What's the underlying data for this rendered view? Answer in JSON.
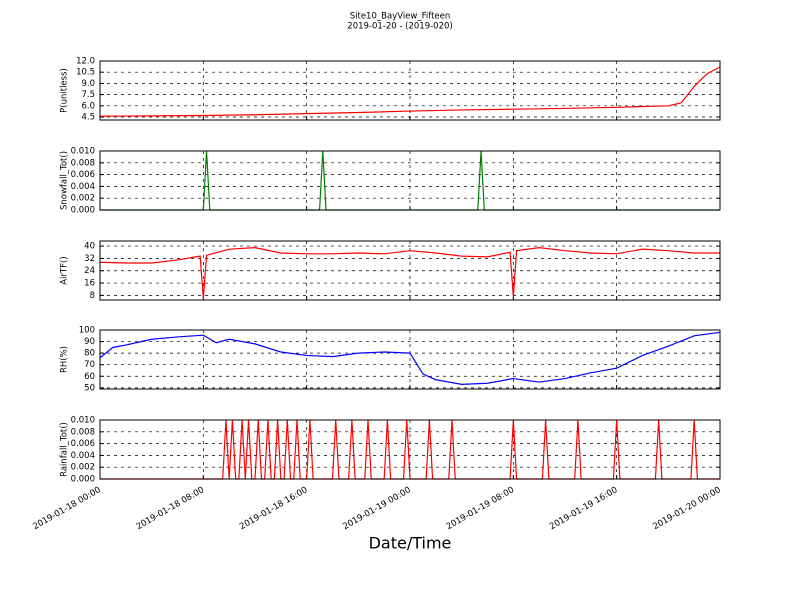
{
  "chart_data": [
    {
      "type": "line",
      "title": "Site10_BayView_Fifteen",
      "subtitle": "2019-01-20 - (2019-020)",
      "ylabel": "P(unitless)",
      "ylim": [
        4.1,
        12.0
      ],
      "yticks": [
        4.5,
        {
          "value": 6,
          "label": "6.0"
        },
        7.5,
        {
          "value": 9,
          "label": "9.0"
        },
        10.5,
        {
          "value": 12,
          "label": "12.0"
        }
      ],
      "grid": true,
      "x": [
        "2019-01-18 00:00",
        "2019-01-18 04:00",
        "2019-01-18 08:00",
        "2019-01-18 12:00",
        "2019-01-18 16:00",
        "2019-01-18 20:00",
        "2019-01-19 00:00",
        "2019-01-19 04:00",
        "2019-01-19 08:00",
        "2019-01-19 12:00",
        "2019-01-19 16:00",
        "2019-01-19 20:00",
        "2019-01-19 21:00",
        "2019-01-19 22:00",
        "2019-01-19 23:00",
        "2019-01-20 00:00"
      ],
      "series": [
        {
          "name": "P",
          "color": "#ff0000",
          "values": [
            4.6,
            4.65,
            4.7,
            4.8,
            4.95,
            5.1,
            5.3,
            5.45,
            5.55,
            5.65,
            5.8,
            6.0,
            6.4,
            8.6,
            10.3,
            11.2
          ]
        }
      ]
    },
    {
      "type": "line",
      "ylabel": "Snowfall_Tot()",
      "ylim": [
        0,
        0.01
      ],
      "yticks": [
        {
          "value": 0,
          "label": "0.000"
        },
        {
          "value": 0.002,
          "label": "0.002"
        },
        {
          "value": 0.004,
          "label": "0.004"
        },
        {
          "value": 0.006,
          "label": "0.006"
        },
        {
          "value": 0.008,
          "label": "0.008"
        },
        {
          "value": 0.01,
          "label": "0.010"
        }
      ],
      "grid": true,
      "x": [
        "2019-01-18 00:00",
        "2019-01-18 08:00",
        "2019-01-18 08:15",
        "2019-01-18 08:30",
        "2019-01-18 17:00",
        "2019-01-18 17:15",
        "2019-01-18 17:30",
        "2019-01-19 05:15",
        "2019-01-19 05:30",
        "2019-01-19 05:45",
        "2019-01-20 00:00"
      ],
      "series": [
        {
          "name": "Snowfall_Tot",
          "color": "#008000",
          "values": [
            0,
            0,
            0.01,
            0,
            0,
            0.01,
            0,
            0,
            0.01,
            0,
            0
          ]
        }
      ]
    },
    {
      "type": "line",
      "ylabel": "AirTF()",
      "ylim": [
        5,
        43.3
      ],
      "yticks": [
        8,
        16,
        24,
        32,
        40
      ],
      "grid": true,
      "x": [
        "2019-01-18 00:00",
        "2019-01-18 02:00",
        "2019-01-18 04:00",
        "2019-01-18 06:00",
        "2019-01-18 07:45",
        "2019-01-18 08:00",
        "2019-01-18 08:15",
        "2019-01-18 10:00",
        "2019-01-18 12:00",
        "2019-01-18 14:00",
        "2019-01-18 16:00",
        "2019-01-18 18:00",
        "2019-01-18 20:00",
        "2019-01-18 22:00",
        "2019-01-19 00:00",
        "2019-01-19 02:00",
        "2019-01-19 04:00",
        "2019-01-19 06:00",
        "2019-01-19 07:45",
        "2019-01-19 08:00",
        "2019-01-19 08:15",
        "2019-01-19 10:00",
        "2019-01-19 12:00",
        "2019-01-19 14:00",
        "2019-01-19 16:00",
        "2019-01-19 18:00",
        "2019-01-19 20:00",
        "2019-01-19 22:00",
        "2019-01-20 00:00"
      ],
      "series": [
        {
          "name": "AirTF",
          "color": "#ff0000",
          "values": [
            29.5,
            29,
            29,
            31,
            33.5,
            6,
            34,
            38,
            39,
            35.5,
            35,
            35,
            35.5,
            35,
            37,
            35.5,
            33.5,
            33,
            36,
            7,
            37,
            39,
            37,
            35.5,
            35,
            38,
            37,
            35.5,
            35.5
          ]
        }
      ]
    },
    {
      "type": "line",
      "ylabel": "RH(%)",
      "ylim": [
        49,
        100
      ],
      "yticks": [
        50,
        60,
        70,
        80,
        90,
        100
      ],
      "grid": true,
      "x": [
        "2019-01-18 00:00",
        "2019-01-18 01:00",
        "2019-01-18 02:00",
        "2019-01-18 04:00",
        "2019-01-18 06:00",
        "2019-01-18 08:00",
        "2019-01-18 09:00",
        "2019-01-18 10:00",
        "2019-01-18 12:00",
        "2019-01-18 14:00",
        "2019-01-18 16:00",
        "2019-01-18 18:00",
        "2019-01-18 20:00",
        "2019-01-18 22:00",
        "2019-01-19 00:00",
        "2019-01-19 01:00",
        "2019-01-19 02:00",
        "2019-01-19 04:00",
        "2019-01-19 06:00",
        "2019-01-19 08:00",
        "2019-01-19 10:00",
        "2019-01-19 12:00",
        "2019-01-19 14:00",
        "2019-01-19 16:00",
        "2019-01-19 18:00",
        "2019-01-19 20:00",
        "2019-01-19 22:00",
        "2019-01-20 00:00"
      ],
      "series": [
        {
          "name": "RH",
          "color": "#0000ff",
          "values": [
            76,
            85,
            87,
            92,
            94,
            95.5,
            89,
            92,
            88,
            81,
            78,
            77,
            80,
            81,
            80,
            62,
            57,
            53,
            54,
            58,
            55,
            58,
            63,
            67,
            78,
            86,
            95,
            98
          ]
        }
      ]
    },
    {
      "type": "line",
      "ylabel": "Rainfall_Tot()",
      "xlabel": "Date/Time",
      "ylim": [
        0,
        0.01
      ],
      "yticks": [
        {
          "value": 0,
          "label": "0.000"
        },
        {
          "value": 0.002,
          "label": "0.002"
        },
        {
          "value": 0.004,
          "label": "0.004"
        },
        {
          "value": 0.006,
          "label": "0.006"
        },
        {
          "value": 0.008,
          "label": "0.008"
        },
        {
          "value": 0.01,
          "label": "0.010"
        }
      ],
      "grid": true,
      "xlim": [
        "2019-01-18 00:00",
        "2019-01-20 00:00"
      ],
      "xticks": [
        "2019-01-18 00:00",
        "2019-01-18 08:00",
        "2019-01-18 16:00",
        "2019-01-19 00:00",
        "2019-01-19 08:00",
        "2019-01-19 16:00",
        "2019-01-20 00:00"
      ],
      "x": [
        "2019-01-18 00:00",
        "2019-01-18 09:30",
        "2019-01-18 09:45",
        "2019-01-18 10:00",
        "2019-01-18 10:15",
        "2019-01-18 10:30",
        "2019-01-18 10:45",
        "2019-01-18 11:00",
        "2019-01-18 11:15",
        "2019-01-18 11:30",
        "2019-01-18 11:45",
        "2019-01-18 12:00",
        "2019-01-18 12:15",
        "2019-01-18 12:30",
        "2019-01-18 12:45",
        "2019-01-18 13:00",
        "2019-01-18 13:15",
        "2019-01-18 13:30",
        "2019-01-18 13:45",
        "2019-01-18 14:00",
        "2019-01-18 14:15",
        "2019-01-18 14:30",
        "2019-01-18 14:45",
        "2019-01-18 15:00",
        "2019-01-18 15:15",
        "2019-01-18 15:30",
        "2019-01-18 16:00",
        "2019-01-18 16:15",
        "2019-01-18 16:30",
        "2019-01-18 18:00",
        "2019-01-18 18:15",
        "2019-01-18 18:30",
        "2019-01-18 19:15",
        "2019-01-18 19:30",
        "2019-01-18 19:45",
        "2019-01-18 20:30",
        "2019-01-18 20:45",
        "2019-01-18 21:00",
        "2019-01-18 22:00",
        "2019-01-18 22:15",
        "2019-01-18 22:30",
        "2019-01-18 23:30",
        "2019-01-18 23:45",
        "2019-01-19 00:00",
        "2019-01-19 01:15",
        "2019-01-19 01:30",
        "2019-01-19 01:45",
        "2019-01-19 03:00",
        "2019-01-19 03:15",
        "2019-01-19 03:30",
        "2019-01-19 07:45",
        "2019-01-19 08:00",
        "2019-01-19 08:15",
        "2019-01-19 10:15",
        "2019-01-19 10:30",
        "2019-01-19 10:45",
        "2019-01-19 12:45",
        "2019-01-19 13:00",
        "2019-01-19 13:15",
        "2019-01-19 15:45",
        "2019-01-19 16:00",
        "2019-01-19 16:15",
        "2019-01-19 19:00",
        "2019-01-19 19:15",
        "2019-01-19 19:30",
        "2019-01-19 21:45",
        "2019-01-19 22:00",
        "2019-01-19 22:15",
        "2019-01-20 00:00"
      ],
      "series": [
        {
          "name": "Rainfall_Tot",
          "color": "#ff0000",
          "values": [
            0,
            0,
            0.01,
            0,
            0.01,
            0,
            0,
            0.01,
            0,
            0.01,
            0,
            0,
            0.01,
            0,
            0,
            0.01,
            0,
            0,
            0.01,
            0,
            0,
            0.01,
            0,
            0,
            0.01,
            0,
            0,
            0.01,
            0,
            0,
            0.01,
            0,
            0,
            0.01,
            0,
            0,
            0.01,
            0,
            0,
            0.01,
            0,
            0,
            0.01,
            0,
            0,
            0.01,
            0,
            0,
            0.01,
            0,
            0,
            0.01,
            0,
            0,
            0.01,
            0,
            0,
            0.01,
            0,
            0,
            0.01,
            0,
            0,
            0.01,
            0,
            0,
            0.01,
            0,
            0
          ]
        }
      ]
    }
  ]
}
